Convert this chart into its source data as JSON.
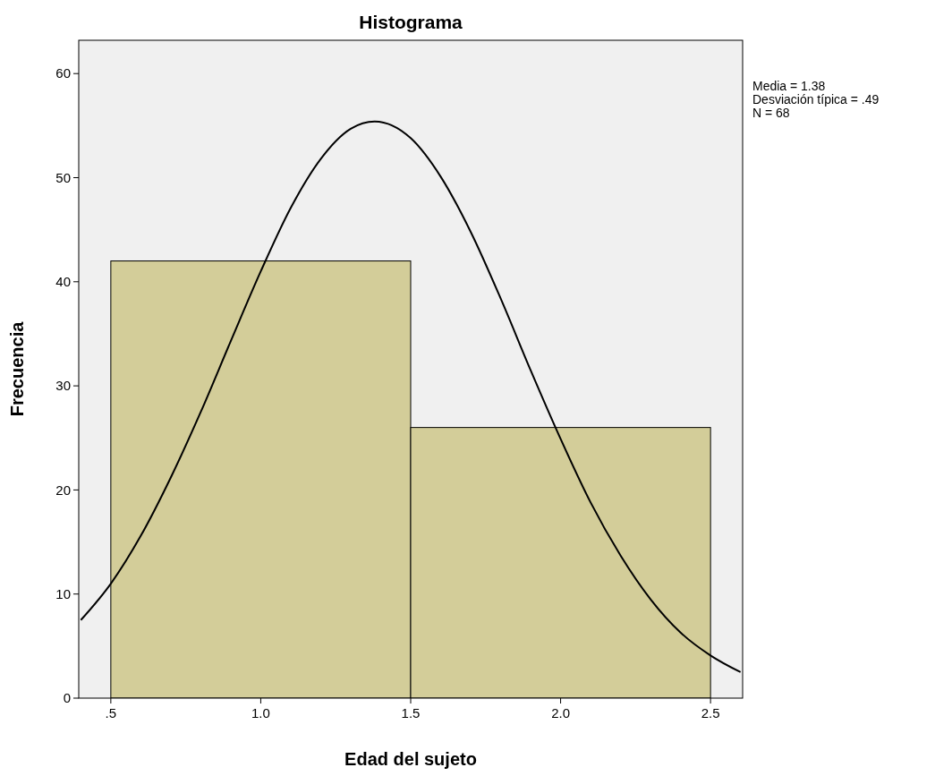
{
  "chart_data": {
    "type": "histogram",
    "title": "Histograma",
    "xlabel": "Edad del sujeto",
    "ylabel": "Frecuencia",
    "annotations": [
      "Media = 1.38",
      "Desviación típica = .49",
      "N = 68"
    ],
    "xlim": [
      0.393,
      2.607
    ],
    "xticks": [
      {
        "value": 0.5,
        "label": ".5"
      },
      {
        "value": 1,
        "label": "1.0"
      },
      {
        "value": 1.5,
        "label": "1.5"
      },
      {
        "value": 2,
        "label": "2.0"
      },
      {
        "value": 2.5,
        "label": "2.5"
      }
    ],
    "ylim": [
      0,
      63.2
    ],
    "yticks": [
      0,
      10,
      20,
      30,
      40,
      50,
      60
    ],
    "grid": false,
    "series": [
      {
        "color": "#d3cd99",
        "bins": [
          0.5,
          1.5,
          2.5
        ],
        "values": [
          42,
          26
        ]
      },
      {
        "type": "line",
        "color": "#000000",
        "x": [
          0.4,
          0.5,
          0.6,
          0.7,
          0.8,
          0.9,
          1.0,
          1.1,
          1.2,
          1.3,
          1.38,
          1.5,
          1.6,
          1.7,
          1.8,
          1.9,
          2.0,
          2.1,
          2.2,
          2.3,
          2.4,
          2.5,
          2.6
        ],
        "values": [
          7.5,
          11.0,
          15.6,
          21.2,
          27.5,
          34.3,
          41.0,
          47.1,
          51.8,
          54.7,
          55.4,
          53.8,
          50.1,
          44.8,
          38.4,
          31.5,
          24.9,
          18.8,
          13.7,
          9.5,
          6.3,
          4.1,
          2.5
        ]
      }
    ]
  }
}
